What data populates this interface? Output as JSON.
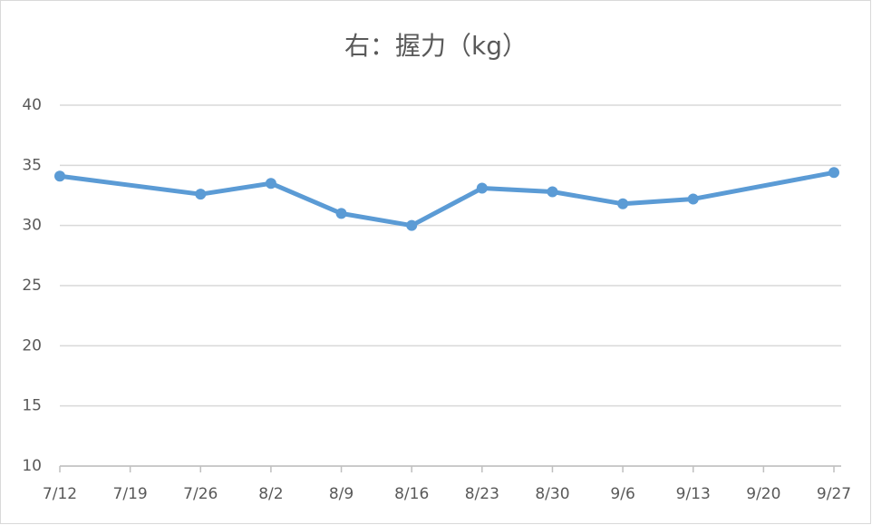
{
  "chart_data": {
    "type": "line",
    "title": "右：握力（kg）",
    "x": [
      "7/12",
      "7/26",
      "8/2",
      "8/9",
      "8/16",
      "8/23",
      "8/30",
      "9/6",
      "9/13",
      "9/27"
    ],
    "values": [
      34.1,
      32.6,
      33.5,
      31.0,
      30.0,
      33.1,
      32.8,
      31.8,
      32.2,
      34.4
    ],
    "color": "#5b9bd5",
    "xticks": [
      "7/12",
      "7/19",
      "7/26",
      "8/2",
      "8/9",
      "8/16",
      "8/23",
      "8/30",
      "9/6",
      "9/13",
      "9/20",
      "9/27"
    ],
    "ylim": [
      10,
      40
    ],
    "yticks": [
      10,
      15,
      20,
      25,
      30,
      35,
      40
    ],
    "grid": true
  }
}
